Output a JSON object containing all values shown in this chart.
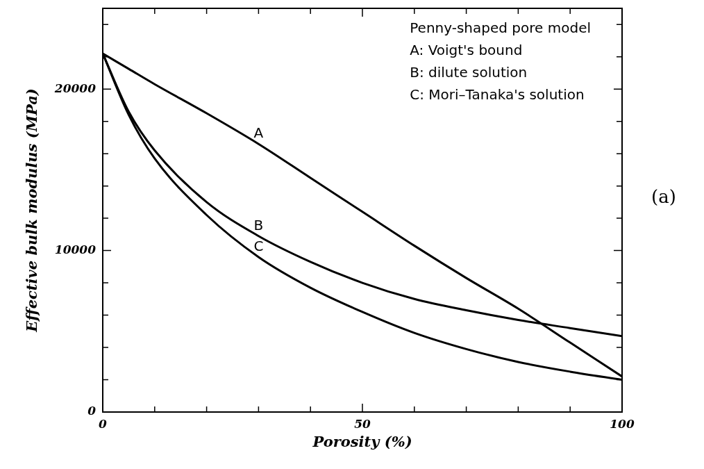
{
  "chart_data": {
    "type": "line",
    "xlabel": "Porosity (%)",
    "ylabel": "Effective bulk modulus (MPa)",
    "x": [
      0,
      5,
      10,
      20,
      30,
      40,
      50,
      60,
      70,
      80,
      90,
      100
    ],
    "series": [
      {
        "name": "A",
        "color": "#000000",
        "values": [
          22200,
          21250,
          20300,
          18500,
          16600,
          14500,
          12400,
          10300,
          8300,
          6400,
          4300,
          2200
        ]
      },
      {
        "name": "B",
        "color": "#000000",
        "values": [
          22200,
          18600,
          16200,
          13000,
          10900,
          9300,
          8000,
          7000,
          6300,
          5700,
          5200,
          4700
        ]
      },
      {
        "name": "C",
        "color": "#000000",
        "values": [
          22200,
          18400,
          15700,
          12200,
          9600,
          7700,
          6200,
          4900,
          3900,
          3100,
          2500,
          2000
        ]
      }
    ],
    "xlim": [
      0,
      100
    ],
    "ylim": [
      0,
      25000
    ],
    "xticks": [
      0,
      {
        "value": 10,
        "label": null
      },
      {
        "value": 20,
        "label": null
      },
      {
        "value": 30,
        "label": null
      },
      {
        "value": 40,
        "label": null
      },
      50,
      {
        "value": 60,
        "label": null
      },
      {
        "value": 70,
        "label": null
      },
      {
        "value": 80,
        "label": null
      },
      {
        "value": 90,
        "label": null
      },
      100
    ],
    "yticks": [
      0,
      {
        "value": 2000,
        "label": null
      },
      {
        "value": 4000,
        "label": null
      },
      {
        "value": 6000,
        "label": null
      },
      {
        "value": 8000,
        "label": null
      },
      10000,
      {
        "value": 12000,
        "label": null
      },
      {
        "value": 14000,
        "label": null
      },
      {
        "value": 16000,
        "label": null
      },
      {
        "value": 18000,
        "label": null
      },
      20000,
      {
        "value": 22000,
        "label": null
      },
      {
        "value": 24000,
        "label": null
      }
    ],
    "grid": false,
    "marker": "none",
    "line_style": "solid",
    "annotations": [
      "Penny-shaped pore model",
      "A: Voigt's bound",
      "B: dilute solution",
      "C: Mori–Tanaka's solution",
      "(a)"
    ]
  }
}
